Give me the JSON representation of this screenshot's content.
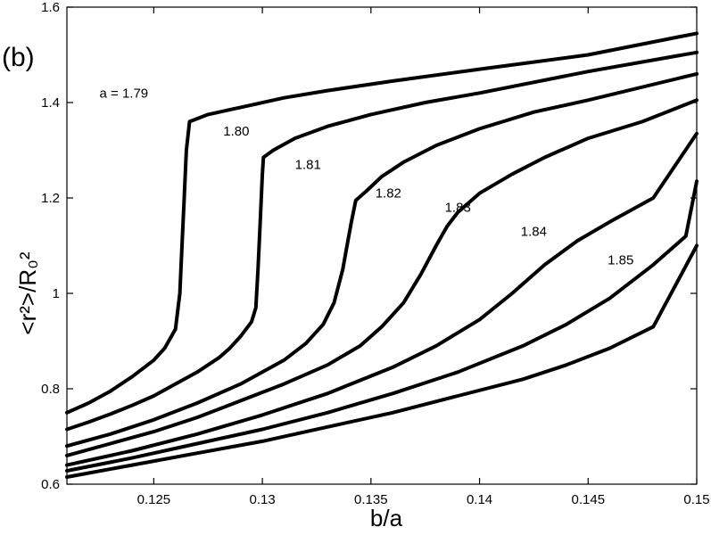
{
  "chart_data": {
    "type": "line",
    "panel_label": "(b)",
    "xlabel": "b/a",
    "ylabel": "<r²>/R₀²",
    "xlim": [
      0.121,
      0.15
    ],
    "ylim": [
      0.6,
      1.6
    ],
    "x_ticks": [
      0.125,
      0.13,
      0.135,
      0.14,
      0.145,
      0.15
    ],
    "x_tick_labels": [
      "0.125",
      "0.13",
      "0.135",
      "0.14",
      "0.145",
      "0.15"
    ],
    "y_ticks": [
      0.6,
      0.8,
      1.0,
      1.2,
      1.4,
      1.6
    ],
    "y_tick_labels": [
      "0.6",
      "0.8",
      "1",
      "1.2",
      "1.4",
      "1.6"
    ],
    "grid": false,
    "series": [
      {
        "name": "a = 1.79",
        "label": {
          "text": "a = 1.79",
          "x": 0.1225,
          "y": 1.42
        },
        "points": [
          [
            0.121,
            0.75
          ],
          [
            0.122,
            0.77
          ],
          [
            0.123,
            0.795
          ],
          [
            0.124,
            0.825
          ],
          [
            0.125,
            0.86
          ],
          [
            0.1255,
            0.885
          ],
          [
            0.126,
            0.925
          ],
          [
            0.1262,
            1.0
          ],
          [
            0.1263,
            1.1
          ],
          [
            0.1264,
            1.2
          ],
          [
            0.1265,
            1.3
          ],
          [
            0.12665,
            1.36
          ],
          [
            0.1275,
            1.375
          ],
          [
            0.129,
            1.39
          ],
          [
            0.131,
            1.41
          ],
          [
            0.133,
            1.425
          ],
          [
            0.136,
            1.445
          ],
          [
            0.14,
            1.47
          ],
          [
            0.145,
            1.5
          ],
          [
            0.15,
            1.545
          ]
        ]
      },
      {
        "name": "1.80",
        "label": {
          "text": "1.80",
          "x": 0.1282,
          "y": 1.34
        },
        "points": [
          [
            0.121,
            0.715
          ],
          [
            0.122,
            0.73
          ],
          [
            0.123,
            0.747
          ],
          [
            0.124,
            0.765
          ],
          [
            0.125,
            0.785
          ],
          [
            0.126,
            0.81
          ],
          [
            0.127,
            0.835
          ],
          [
            0.128,
            0.865
          ],
          [
            0.1285,
            0.885
          ],
          [
            0.129,
            0.91
          ],
          [
            0.1295,
            0.94
          ],
          [
            0.1297,
            0.97
          ],
          [
            0.1298,
            1.05
          ],
          [
            0.1299,
            1.15
          ],
          [
            0.13,
            1.25
          ],
          [
            0.13005,
            1.285
          ],
          [
            0.1305,
            1.3
          ],
          [
            0.1315,
            1.325
          ],
          [
            0.133,
            1.35
          ],
          [
            0.135,
            1.375
          ],
          [
            0.1375,
            1.4
          ],
          [
            0.14,
            1.42
          ],
          [
            0.145,
            1.465
          ],
          [
            0.15,
            1.505
          ]
        ]
      },
      {
        "name": "1.81",
        "label": {
          "text": "1.81",
          "x": 0.1315,
          "y": 1.27
        },
        "points": [
          [
            0.121,
            0.68
          ],
          [
            0.123,
            0.705
          ],
          [
            0.125,
            0.735
          ],
          [
            0.127,
            0.77
          ],
          [
            0.129,
            0.81
          ],
          [
            0.131,
            0.86
          ],
          [
            0.132,
            0.895
          ],
          [
            0.1328,
            0.935
          ],
          [
            0.1333,
            0.98
          ],
          [
            0.1337,
            1.05
          ],
          [
            0.1339,
            1.1
          ],
          [
            0.1341,
            1.15
          ],
          [
            0.1343,
            1.195
          ],
          [
            0.1348,
            1.215
          ],
          [
            0.1355,
            1.245
          ],
          [
            0.1365,
            1.275
          ],
          [
            0.138,
            1.31
          ],
          [
            0.14,
            1.345
          ],
          [
            0.1425,
            1.38
          ],
          [
            0.145,
            1.405
          ],
          [
            0.15,
            1.46
          ]
        ]
      },
      {
        "name": "1.82",
        "label": {
          "text": "1.82",
          "x": 0.1352,
          "y": 1.21
        },
        "points": [
          [
            0.121,
            0.66
          ],
          [
            0.123,
            0.685
          ],
          [
            0.125,
            0.71
          ],
          [
            0.127,
            0.74
          ],
          [
            0.129,
            0.775
          ],
          [
            0.131,
            0.81
          ],
          [
            0.133,
            0.85
          ],
          [
            0.1345,
            0.89
          ],
          [
            0.1355,
            0.93
          ],
          [
            0.1365,
            0.98
          ],
          [
            0.1373,
            1.04
          ],
          [
            0.138,
            1.1
          ],
          [
            0.1385,
            1.14
          ],
          [
            0.139,
            1.17
          ],
          [
            0.14,
            1.21
          ],
          [
            0.1415,
            1.25
          ],
          [
            0.143,
            1.285
          ],
          [
            0.145,
            1.325
          ],
          [
            0.1475,
            1.36
          ],
          [
            0.15,
            1.405
          ]
        ]
      },
      {
        "name": "1.83",
        "label": {
          "text": "1.83",
          "x": 0.1384,
          "y": 1.18
        },
        "points": [
          [
            0.121,
            0.64
          ],
          [
            0.124,
            0.67
          ],
          [
            0.127,
            0.705
          ],
          [
            0.13,
            0.745
          ],
          [
            0.133,
            0.79
          ],
          [
            0.136,
            0.845
          ],
          [
            0.138,
            0.89
          ],
          [
            0.14,
            0.945
          ],
          [
            0.1415,
            1.0
          ],
          [
            0.143,
            1.06
          ],
          [
            0.1445,
            1.11
          ],
          [
            0.146,
            1.15
          ],
          [
            0.148,
            1.2
          ],
          [
            0.15,
            1.335
          ]
        ]
      },
      {
        "name": "1.84",
        "label": {
          "text": "1.84",
          "x": 0.1419,
          "y": 1.13
        },
        "points": [
          [
            0.121,
            0.628
          ],
          [
            0.124,
            0.655
          ],
          [
            0.127,
            0.685
          ],
          [
            0.13,
            0.715
          ],
          [
            0.133,
            0.75
          ],
          [
            0.136,
            0.79
          ],
          [
            0.139,
            0.835
          ],
          [
            0.142,
            0.89
          ],
          [
            0.144,
            0.935
          ],
          [
            0.146,
            0.99
          ],
          [
            0.148,
            1.06
          ],
          [
            0.1495,
            1.12
          ],
          [
            0.15,
            1.235
          ]
        ]
      },
      {
        "name": "1.85",
        "label": {
          "text": "1.85",
          "x": 0.1459,
          "y": 1.07
        },
        "points": [
          [
            0.121,
            0.615
          ],
          [
            0.124,
            0.64
          ],
          [
            0.127,
            0.665
          ],
          [
            0.13,
            0.69
          ],
          [
            0.133,
            0.72
          ],
          [
            0.136,
            0.75
          ],
          [
            0.139,
            0.785
          ],
          [
            0.142,
            0.82
          ],
          [
            0.144,
            0.85
          ],
          [
            0.146,
            0.885
          ],
          [
            0.148,
            0.93
          ],
          [
            0.15,
            1.1
          ]
        ]
      }
    ]
  }
}
